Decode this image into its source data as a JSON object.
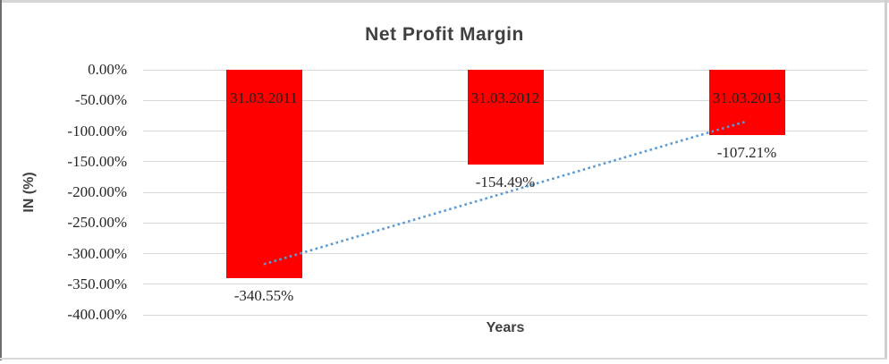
{
  "chart_data": {
    "type": "bar",
    "title": "Net Profit Margin",
    "xlabel": "Years",
    "ylabel": "IN (%)",
    "categories": [
      "31.03.2011",
      "31.03.2012",
      "31.03.2013"
    ],
    "values": [
      -340.55,
      -154.49,
      -107.21
    ],
    "value_labels": [
      "-340.55%",
      "-154.49%",
      "-107.21%"
    ],
    "ylim": [
      0,
      -400
    ],
    "yticks": [
      {
        "label": "0.00%",
        "value": 0
      },
      {
        "label": "-50.00%",
        "value": -50
      },
      {
        "label": "-100.00%",
        "value": -100
      },
      {
        "label": "-150.00%",
        "value": -150
      },
      {
        "label": "-200.00%",
        "value": -200
      },
      {
        "label": "-250.00%",
        "value": -250
      },
      {
        "label": "-300.00%",
        "value": -300
      },
      {
        "label": "-350.00%",
        "value": -350
      },
      {
        "label": "-400.00%",
        "value": -400
      }
    ],
    "grid": true,
    "legend": false,
    "bar_color": "#FF0000",
    "grid_color": "#D9D9D9",
    "title_color": "#404040",
    "tick_text_color": "#262626",
    "trendline": {
      "type": "linear",
      "style": "dotted",
      "color": "#5B9BD5",
      "start_value": -317.4,
      "end_value": -84.1
    }
  }
}
